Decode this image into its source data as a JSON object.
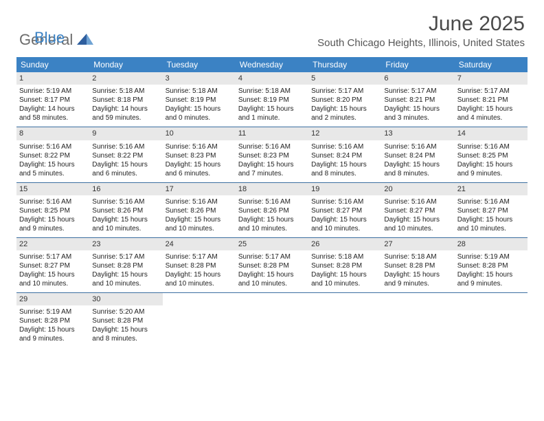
{
  "logo": {
    "general": "General",
    "blue": "Blue"
  },
  "title": "June 2025",
  "location": "South Chicago Heights, Illinois, United States",
  "colors": {
    "header_bg": "#3b82c4",
    "header_text": "#ffffff",
    "daynum_bg": "#e8e8e8",
    "row_border": "#3b6ea0",
    "logo_gray": "#6b6b6b",
    "logo_blue": "#3b82c4",
    "title_color": "#4a4a4a",
    "location_color": "#555555"
  },
  "day_names": [
    "Sunday",
    "Monday",
    "Tuesday",
    "Wednesday",
    "Thursday",
    "Friday",
    "Saturday"
  ],
  "weeks": [
    [
      {
        "n": "1",
        "sr": "5:19 AM",
        "ss": "8:17 PM",
        "dl": "14 hours and 58 minutes."
      },
      {
        "n": "2",
        "sr": "5:18 AM",
        "ss": "8:18 PM",
        "dl": "14 hours and 59 minutes."
      },
      {
        "n": "3",
        "sr": "5:18 AM",
        "ss": "8:19 PM",
        "dl": "15 hours and 0 minutes."
      },
      {
        "n": "4",
        "sr": "5:18 AM",
        "ss": "8:19 PM",
        "dl": "15 hours and 1 minute."
      },
      {
        "n": "5",
        "sr": "5:17 AM",
        "ss": "8:20 PM",
        "dl": "15 hours and 2 minutes."
      },
      {
        "n": "6",
        "sr": "5:17 AM",
        "ss": "8:21 PM",
        "dl": "15 hours and 3 minutes."
      },
      {
        "n": "7",
        "sr": "5:17 AM",
        "ss": "8:21 PM",
        "dl": "15 hours and 4 minutes."
      }
    ],
    [
      {
        "n": "8",
        "sr": "5:16 AM",
        "ss": "8:22 PM",
        "dl": "15 hours and 5 minutes."
      },
      {
        "n": "9",
        "sr": "5:16 AM",
        "ss": "8:22 PM",
        "dl": "15 hours and 6 minutes."
      },
      {
        "n": "10",
        "sr": "5:16 AM",
        "ss": "8:23 PM",
        "dl": "15 hours and 6 minutes."
      },
      {
        "n": "11",
        "sr": "5:16 AM",
        "ss": "8:23 PM",
        "dl": "15 hours and 7 minutes."
      },
      {
        "n": "12",
        "sr": "5:16 AM",
        "ss": "8:24 PM",
        "dl": "15 hours and 8 minutes."
      },
      {
        "n": "13",
        "sr": "5:16 AM",
        "ss": "8:24 PM",
        "dl": "15 hours and 8 minutes."
      },
      {
        "n": "14",
        "sr": "5:16 AM",
        "ss": "8:25 PM",
        "dl": "15 hours and 9 minutes."
      }
    ],
    [
      {
        "n": "15",
        "sr": "5:16 AM",
        "ss": "8:25 PM",
        "dl": "15 hours and 9 minutes."
      },
      {
        "n": "16",
        "sr": "5:16 AM",
        "ss": "8:26 PM",
        "dl": "15 hours and 10 minutes."
      },
      {
        "n": "17",
        "sr": "5:16 AM",
        "ss": "8:26 PM",
        "dl": "15 hours and 10 minutes."
      },
      {
        "n": "18",
        "sr": "5:16 AM",
        "ss": "8:26 PM",
        "dl": "15 hours and 10 minutes."
      },
      {
        "n": "19",
        "sr": "5:16 AM",
        "ss": "8:27 PM",
        "dl": "15 hours and 10 minutes."
      },
      {
        "n": "20",
        "sr": "5:16 AM",
        "ss": "8:27 PM",
        "dl": "15 hours and 10 minutes."
      },
      {
        "n": "21",
        "sr": "5:16 AM",
        "ss": "8:27 PM",
        "dl": "15 hours and 10 minutes."
      }
    ],
    [
      {
        "n": "22",
        "sr": "5:17 AM",
        "ss": "8:27 PM",
        "dl": "15 hours and 10 minutes."
      },
      {
        "n": "23",
        "sr": "5:17 AM",
        "ss": "8:28 PM",
        "dl": "15 hours and 10 minutes."
      },
      {
        "n": "24",
        "sr": "5:17 AM",
        "ss": "8:28 PM",
        "dl": "15 hours and 10 minutes."
      },
      {
        "n": "25",
        "sr": "5:17 AM",
        "ss": "8:28 PM",
        "dl": "15 hours and 10 minutes."
      },
      {
        "n": "26",
        "sr": "5:18 AM",
        "ss": "8:28 PM",
        "dl": "15 hours and 10 minutes."
      },
      {
        "n": "27",
        "sr": "5:18 AM",
        "ss": "8:28 PM",
        "dl": "15 hours and 9 minutes."
      },
      {
        "n": "28",
        "sr": "5:19 AM",
        "ss": "8:28 PM",
        "dl": "15 hours and 9 minutes."
      }
    ],
    [
      {
        "n": "29",
        "sr": "5:19 AM",
        "ss": "8:28 PM",
        "dl": "15 hours and 9 minutes."
      },
      {
        "n": "30",
        "sr": "5:20 AM",
        "ss": "8:28 PM",
        "dl": "15 hours and 8 minutes."
      },
      null,
      null,
      null,
      null,
      null
    ]
  ],
  "labels": {
    "sunrise": "Sunrise: ",
    "sunset": "Sunset: ",
    "daylight": "Daylight: "
  }
}
